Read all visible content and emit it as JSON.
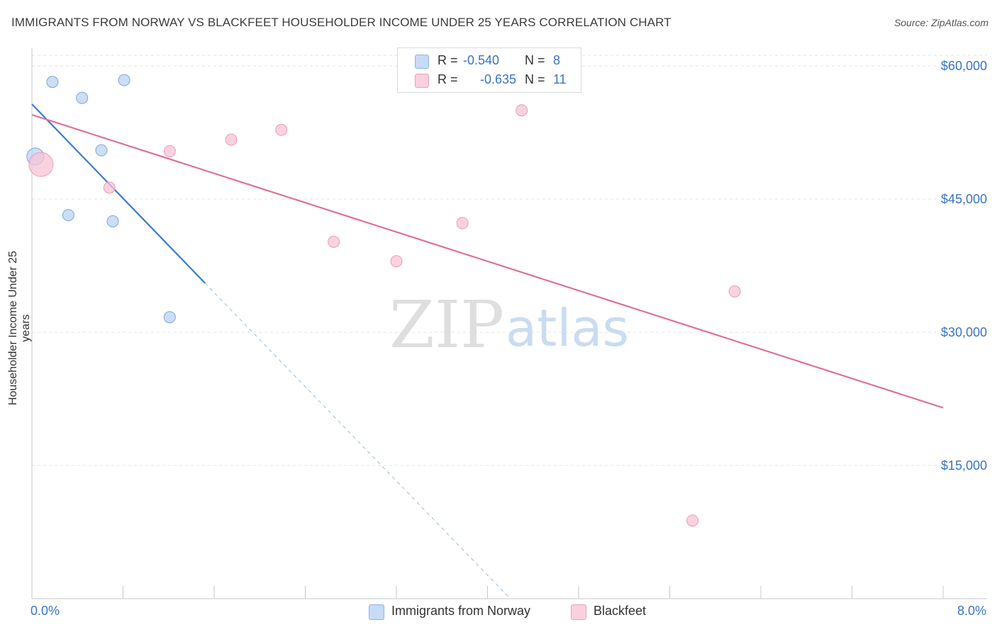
{
  "title": "IMMIGRANTS FROM NORWAY VS BLACKFEET HOUSEHOLDER INCOME UNDER 25 YEARS CORRELATION CHART",
  "source": "Source: ZipAtlas.com",
  "watermark": {
    "zip": "ZIP",
    "atlas": "atlas"
  },
  "legend": {
    "rows": [
      {
        "r_label": "R =",
        "r_value": "-0.540",
        "n_label": "N =",
        "n_value": "8"
      },
      {
        "r_label": "R =",
        "r_value": "-0.635",
        "n_label": "N =",
        "n_value": "11"
      }
    ]
  },
  "bottom_legend": {
    "series1": "Immigrants from Norway",
    "series2": "Blackfeet"
  },
  "x_axis": {
    "min_label": "0.0%",
    "max_label": "8.0%"
  },
  "colors": {
    "norway": "#3a7bd5",
    "norway_fill": "#b9d3f3",
    "blackfeet": "#e0709a",
    "blackfeet_fill": "#f8c3d4",
    "axis_label": "#3a74c4"
  },
  "chart_data": {
    "type": "scatter",
    "title": "IMMIGRANTS FROM NORWAY VS BLACKFEET HOUSEHOLDER INCOME UNDER 25 YEARS CORRELATION CHART",
    "xlabel": "",
    "ylabel": "Householder Income Under 25 years",
    "xlim": [
      0,
      8
    ],
    "ylim": [
      0,
      62000
    ],
    "y_ticks": [
      15000,
      30000,
      45000,
      60000
    ],
    "y_tick_labels": [
      "$15,000",
      "$30,000",
      "$45,000",
      "$60,000"
    ],
    "x_tick_values": [
      0,
      0.8,
      1.6,
      2.4,
      3.2,
      4.0,
      4.8,
      5.6,
      6.4,
      7.2,
      8.0
    ],
    "series": [
      {
        "name": "Immigrants from Norway",
        "r": -0.54,
        "n": 8,
        "points": [
          {
            "x": 0.03,
            "y": 49800,
            "size": "large"
          },
          {
            "x": 0.18,
            "y": 58200
          },
          {
            "x": 0.44,
            "y": 56400
          },
          {
            "x": 0.81,
            "y": 58400
          },
          {
            "x": 0.61,
            "y": 50500
          },
          {
            "x": 0.32,
            "y": 43200
          },
          {
            "x": 0.71,
            "y": 42500
          },
          {
            "x": 1.21,
            "y": 31700
          }
        ],
        "trend": {
          "x_start": 0.0,
          "y_start": 55700,
          "x_solid_end": 1.52,
          "x_end": 4.2,
          "y_end": 0
        }
      },
      {
        "name": "Blackfeet",
        "r": -0.635,
        "n": 11,
        "points": [
          {
            "x": 0.08,
            "y": 48900,
            "size": "large"
          },
          {
            "x": 0.68,
            "y": 46300
          },
          {
            "x": 1.21,
            "y": 50400
          },
          {
            "x": 1.75,
            "y": 51700
          },
          {
            "x": 2.19,
            "y": 52800
          },
          {
            "x": 2.65,
            "y": 40200
          },
          {
            "x": 3.2,
            "y": 38000
          },
          {
            "x": 3.78,
            "y": 42300
          },
          {
            "x": 4.3,
            "y": 55000
          },
          {
            "x": 6.17,
            "y": 34600
          },
          {
            "x": 5.8,
            "y": 8800
          }
        ],
        "trend": {
          "x_start": 0.0,
          "y_start": 54500,
          "x_end": 8.0,
          "y_end": 21500
        }
      }
    ]
  }
}
